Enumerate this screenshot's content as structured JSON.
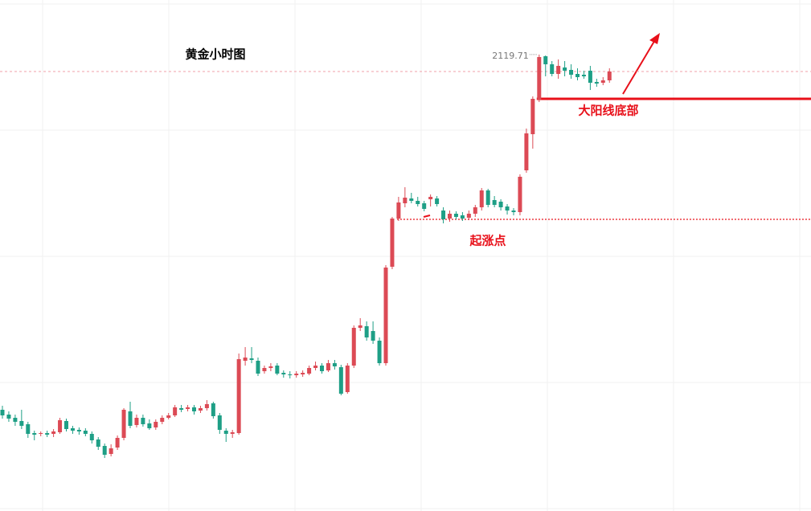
{
  "chart_data": {
    "type": "candlestick",
    "title": "黄金小时图",
    "up_color": "#dc4a55",
    "down_color": "#1e9f86",
    "annotation_color": "#e8101a",
    "ylim": [
      2062.9,
      2126.5
    ],
    "open": [
      2075.5,
      2074.9,
      2074.5,
      2074.1,
      2073.7,
      2072.6,
      2072.5,
      2072.6,
      2072.5,
      2072.7,
      2074.1,
      2073.2,
      2073.0,
      2072.9,
      2072.5,
      2071.8,
      2071.0,
      2070.0,
      2070.8,
      2072.0,
      2075.3,
      2073.6,
      2074.5,
      2073.8,
      2073.3,
      2074.0,
      2074.5,
      2074.8,
      2075.7,
      2075.6,
      2075.8,
      2075.4,
      2075.7,
      2076.3,
      2074.8,
      2072.9,
      2072.5,
      2072.6,
      2081.6,
      2081.9,
      2081.6,
      2080.3,
      2080.7,
      2081.0,
      2080.1,
      2079.9,
      2079.8,
      2079.9,
      2080.0,
      2080.7,
      2081.0,
      2080.4,
      2081.3,
      2080.8,
      2077.7,
      2081.0,
      2085.7,
      2085.9,
      2085.3,
      2084.1,
      2081.3,
      2093.3,
      2099.3,
      2101.2,
      2101.8,
      2101.5,
      2101.2,
      2101.7,
      2101.8,
      2100.3,
      2099.3,
      2099.9,
      2099.7,
      2099.4,
      2099.9,
      2100.7,
      2102.8,
      2101.6,
      2101.4,
      2100.8,
      2100.3,
      2100.1,
      2105.3,
      2109.8,
      2114.1,
      2119.5,
      2118.5,
      2117.3,
      2118.1,
      2117.8,
      2117.3,
      2117.2,
      2117.7,
      2116.3,
      2116.2,
      2116.5
    ],
    "high": [
      2076.0,
      2075.3,
      2074.9,
      2075.5,
      2074.0,
      2072.9,
      2072.8,
      2072.9,
      2073.1,
      2074.5,
      2074.4,
      2073.5,
      2073.3,
      2073.2,
      2072.8,
      2072.1,
      2071.3,
      2071.2,
      2072.3,
      2075.7,
      2076.5,
      2074.9,
      2074.9,
      2074.3,
      2074.3,
      2074.8,
      2075.1,
      2076.1,
      2076.1,
      2076.1,
      2076.1,
      2076.0,
      2076.7,
      2076.5,
      2075.1,
      2073.2,
      2073.0,
      2082.5,
      2083.3,
      2083.3,
      2082.0,
      2081.0,
      2081.3,
      2081.3,
      2080.4,
      2080.3,
      2080.3,
      2080.4,
      2081.0,
      2081.5,
      2081.3,
      2081.7,
      2081.7,
      2081.1,
      2081.3,
      2086.0,
      2086.9,
      2086.5,
      2086.5,
      2084.5,
      2093.5,
      2099.5,
      2102.0,
      2103.2,
      2102.5,
      2102.0,
      2101.5,
      2102.3,
      2102.1,
      2100.7,
      2100.3,
      2100.2,
      2100.1,
      2100.3,
      2101.0,
      2103.1,
      2103.0,
      2102.1,
      2101.7,
      2101.1,
      2100.6,
      2104.8,
      2110.5,
      2114.5,
      2119.71,
      2119.6,
      2118.9,
      2119.1,
      2118.9,
      2118.5,
      2118.0,
      2117.7,
      2118.3,
      2116.7,
      2116.9,
      2118.0
    ],
    "low": [
      2074.4,
      2074.0,
      2073.5,
      2073.1,
      2072.0,
      2071.7,
      2072.2,
      2072.1,
      2072.1,
      2072.5,
      2072.8,
      2072.5,
      2072.4,
      2072.2,
      2071.3,
      2070.5,
      2069.5,
      2069.7,
      2070.5,
      2071.7,
      2073.2,
      2073.3,
      2073.4,
      2073.0,
      2073.0,
      2073.7,
      2074.3,
      2074.6,
      2075.2,
      2075.3,
      2074.9,
      2075.1,
      2075.4,
      2074.4,
      2072.5,
      2071.5,
      2072.0,
      2072.4,
      2081.0,
      2081.3,
      2079.7,
      2080.0,
      2080.3,
      2079.8,
      2079.5,
      2079.4,
      2079.5,
      2079.6,
      2079.8,
      2080.4,
      2080.0,
      2080.2,
      2080.5,
      2077.3,
      2077.5,
      2080.7,
      2085.3,
      2084.1,
      2083.7,
      2081.0,
      2081.0,
      2093.0,
      2099.0,
      2100.7,
      2101.2,
      2100.8,
      2100.2,
      2100.8,
      2100.8,
      2098.7,
      2098.9,
      2099.2,
      2099.0,
      2099.1,
      2099.5,
      2100.3,
      2100.7,
      2100.7,
      2100.3,
      2099.8,
      2099.7,
      2099.7,
      2105.0,
      2108.0,
      2113.8,
      2117.0,
      2117.0,
      2116.7,
      2117.0,
      2116.7,
      2116.5,
      2116.7,
      2115.3,
      2115.7,
      2115.9,
      2116.2
    ],
    "close": [
      2074.8,
      2074.4,
      2074.0,
      2073.5,
      2072.5,
      2072.4,
      2072.6,
      2072.4,
      2072.8,
      2074.2,
      2073.1,
      2072.9,
      2072.8,
      2072.5,
      2071.7,
      2070.9,
      2069.9,
      2070.7,
      2072.0,
      2075.5,
      2073.5,
      2074.5,
      2073.7,
      2073.2,
      2074.0,
      2074.5,
      2074.8,
      2075.8,
      2075.5,
      2075.8,
      2075.3,
      2075.7,
      2076.2,
      2074.7,
      2073.0,
      2072.5,
      2072.7,
      2081.8,
      2082.0,
      2081.7,
      2080.0,
      2080.7,
      2080.9,
      2080.0,
      2079.9,
      2079.8,
      2080.0,
      2080.1,
      2080.7,
      2081.0,
      2080.3,
      2081.3,
      2080.9,
      2077.5,
      2081.0,
      2085.7,
      2086.0,
      2084.5,
      2084.1,
      2081.3,
      2093.2,
      2099.3,
      2101.3,
      2101.9,
      2101.5,
      2101.1,
      2100.5,
      2102.0,
      2101.1,
      2099.2,
      2099.9,
      2099.5,
      2099.3,
      2099.9,
      2100.7,
      2102.8,
      2101.0,
      2101.0,
      2100.7,
      2100.3,
      2100.1,
      2104.5,
      2109.9,
      2114.2,
      2119.4,
      2118.5,
      2117.3,
      2118.3,
      2117.7,
      2117.2,
      2116.9,
      2117.0,
      2116.2,
      2116.1,
      2116.5,
      2117.6
    ],
    "levels": [
      {
        "label": "大阳线底部",
        "value": 2114.2
      },
      {
        "label": "起涨点",
        "value": 2099.2
      }
    ]
  }
}
